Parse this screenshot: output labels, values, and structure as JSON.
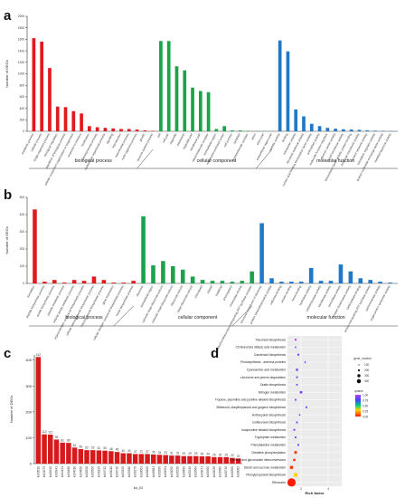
{
  "chart_data": [
    {
      "panel": "a",
      "type": "bar",
      "ylabel": "Number of DEGs",
      "ylim": [
        0,
        2000
      ],
      "yticks": [
        0,
        200,
        400,
        600,
        800,
        1000,
        1200,
        1400,
        1600,
        1800,
        2000
      ],
      "groups": [
        {
          "name": "biological process",
          "color": "#e31a1c",
          "categories": [
            "metabolic process",
            "cellular process",
            "single-organism process",
            "biological regulation",
            "regulation of biological process",
            "cellular component organization or biogenesis",
            "response to stimulus",
            "localization",
            "developmental process",
            "multicellular organismal process",
            "signaling",
            "reproduction",
            "reproductive process",
            "multi-organism process",
            "growth",
            "immune system process"
          ],
          "values": [
            1620,
            1560,
            1100,
            430,
            420,
            350,
            310,
            90,
            70,
            60,
            50,
            40,
            40,
            30,
            15,
            8
          ]
        },
        {
          "name": "cellular component",
          "color": "#1aa34a",
          "categories": [
            "cell",
            "cell part",
            "organelle",
            "membrane",
            "organelle part",
            "membrane part",
            "macromolecular complex",
            "extracellular region",
            "membrane-enclosed lumen",
            "cell junction",
            "symplast",
            "supramolecular complex",
            "virion",
            "virion part",
            "extracellular region part"
          ],
          "values": [
            1570,
            1570,
            1130,
            1060,
            760,
            700,
            680,
            40,
            90,
            15,
            15,
            8,
            3,
            3,
            3
          ]
        },
        {
          "name": "molecular function",
          "color": "#1f78c8",
          "categories": [
            "catalytic activity",
            "binding",
            "transporter activity",
            "structural molecule activity",
            "nucleic acid binding transcription factor activity",
            "antioxidant activity",
            "molecular function regulator",
            "electron carrier activity",
            "signal transducer activity",
            "transcription factor activity, protein binding",
            "molecular transducer activity",
            "nutrient reservoir activity",
            "translation regulator activity",
            "guanyl-nucleotide exchange factor activity",
            "metallochaperone activity"
          ],
          "values": [
            1580,
            1390,
            380,
            260,
            130,
            90,
            60,
            45,
            35,
            30,
            25,
            15,
            10,
            8,
            5
          ]
        }
      ]
    },
    {
      "panel": "b",
      "type": "bar",
      "ylabel": "Number of DEGs",
      "ylim": [
        0,
        500
      ],
      "yticks": [
        0,
        100,
        200,
        300,
        400,
        500
      ],
      "groups": [
        {
          "name": "biological process",
          "color": "#e31a1c",
          "categories": [
            "translation",
            "peptide biosynthetic process",
            "amide biosynthetic process",
            "peptide metabolic process",
            "cellular amide metabolic process",
            "organonitrogen compound biosynthetic process",
            "cellular macromolecule biosynthetic process",
            "macromolecule biosynthetic process",
            "gene expression",
            "cellular nitrogen compound biosynthetic process",
            "heme biosynthetic process"
          ],
          "values": [
            430,
            10,
            20,
            5,
            20,
            15,
            40,
            20,
            5,
            5,
            15
          ]
        },
        {
          "name": "cellular component",
          "color": "#1aa34a",
          "categories": [
            "ribosome",
            "extracellular region",
            "cytosolic large ribosomal subunit",
            "cytosolic small ribosomal subunit",
            "ribosomal subunit",
            "large ribosomal subunit",
            "chloroplast",
            "plastid",
            "thylakoid",
            "photosystem",
            "chloroplast stroma",
            "mitochondrial proton-transporting ATP synthase complex"
          ],
          "values": [
            390,
            105,
            130,
            100,
            80,
            40,
            20,
            15,
            15,
            10,
            15,
            70
          ]
        },
        {
          "name": "molecular function",
          "color": "#1f78c8",
          "categories": [
            "structural constituent of ribosome",
            "protein heterodimerization activity",
            "cellulose binding",
            "protein binding",
            "heme binding",
            "hydrolase activity",
            "oxidoreductase activity",
            "transferase activity",
            "peroxidase activity",
            "protein dimerization activity",
            "carbohydrate binding",
            "proton-transporting ATP synthase activity",
            "pectinesterase activity",
            "sugar:proton symporter activity"
          ],
          "values": [
            350,
            30,
            10,
            10,
            10,
            90,
            15,
            15,
            110,
            70,
            30,
            20,
            10,
            5
          ]
        }
      ]
    },
    {
      "panel": "c",
      "type": "bar",
      "xlabel": "ko_ID",
      "ylabel": "Number of DEGs",
      "ylim": [
        0,
        420
      ],
      "yticks": [
        0,
        100,
        200,
        300,
        400
      ],
      "categories": [
        "ko03010",
        "ko04075",
        "ko00940",
        "ko00941",
        "ko04141",
        "ko00480",
        "ko04016",
        "ko04626",
        "ko00520",
        "ko00500",
        "ko00195",
        "ko04712",
        "ko00010",
        "ko00710",
        "ko00190",
        "ko00360",
        "ko00270",
        "ko00061",
        "ko00620",
        "ko00561",
        "ko00260",
        "ko00051",
        "ko00052",
        "ko00230",
        "ko00630",
        "ko00240",
        "ko00564",
        "ko00071",
        "ko00900",
        "ko00030",
        "ko00380",
        "ko00710",
        "ko00350",
        "ko00062"
      ],
      "values": [
        412,
        113,
        112,
        93,
        81,
        80,
        62,
        56,
        52,
        52,
        51,
        50,
        48,
        45,
        40,
        40,
        37,
        37,
        37,
        35,
        34,
        33,
        31,
        31,
        29,
        29,
        29,
        28,
        28,
        25,
        25,
        25,
        22,
        20
      ],
      "color": "#d7191c"
    },
    {
      "panel": "d",
      "type": "scatter",
      "xlabel": "Rich factor",
      "xticks": [
        2,
        4
      ],
      "legend_size_title": "gene_number",
      "legend_size_values": [
        100,
        200,
        300,
        400
      ],
      "legend_color_title": "qvalue",
      "legend_color_ticks": [
        "1.00",
        "0.75",
        "0.50",
        "0.25",
        "0.00"
      ],
      "pathways": [
        "Flavonoid biosynthesis",
        "C5-Branched dibasic acid metabolism",
        "Carotenoid biosynthesis",
        "Photosynthesis - antenna proteins",
        "Cyanoamino acid metabolism",
        "Limonene and pinene degradation",
        "Zeatin biosynthesis",
        "Nitrogen metabolism",
        "Tropane, piperidine and pyridine alkaloid biosynthesis",
        "Stilbenoid, diarylheptanoid and gingerol biosynthesis",
        "Anthocyanin biosynthesis",
        "Isoflavonoid biosynthesis",
        "Isoquinoline alkaloid biosynthesis",
        "Tryptophan metabolism",
        "Phenylalanine metabolism",
        "Oxidative phosphorylation",
        "Pentose and glucuronate interconversions",
        "Starch and sucrose metabolism",
        "Phenylpropanoid biosynthesis",
        "Ribosome"
      ],
      "rich_factor": [
        1.6,
        1.6,
        1.8,
        2.3,
        1.7,
        1.7,
        1.7,
        2.0,
        1.6,
        2.4,
        1.9,
        1.7,
        1.5,
        1.6,
        1.8,
        1.6,
        1.5,
        1.3,
        1.6,
        1.3
      ],
      "gene_number": [
        10,
        5,
        12,
        5,
        20,
        9,
        7,
        25,
        9,
        10,
        5,
        9,
        11,
        9,
        10,
        30,
        20,
        50,
        80,
        412
      ],
      "qvalue": [
        0.95,
        0.95,
        0.9,
        0.85,
        0.9,
        0.9,
        0.85,
        0.9,
        0.85,
        0.9,
        0.9,
        0.85,
        0.9,
        0.85,
        0.85,
        0.05,
        0.05,
        0.05,
        0.3,
        0.0
      ]
    }
  ]
}
